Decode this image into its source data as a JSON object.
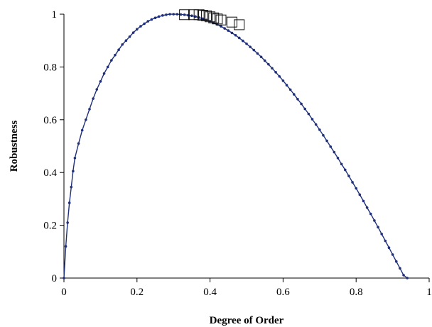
{
  "chart_data": {
    "type": "scatter",
    "title": "",
    "xlabel": "Degree of Order",
    "ylabel": "Robustness",
    "xlim": [
      0,
      1
    ],
    "ylim": [
      0,
      1
    ],
    "x_ticks": [
      "0",
      "0.2",
      "0.4",
      "0.6",
      "0.8",
      "1"
    ],
    "y_ticks": [
      "0",
      "0.2",
      "0.4",
      "0.6",
      "0.8",
      "1"
    ],
    "grid": false,
    "legend": false,
    "series_color": "#1f2f7a",
    "marker_color": "#111111",
    "series": [
      {
        "values": [
          [
            0.0,
            0.0
          ],
          [
            0.005,
            0.12
          ],
          [
            0.01,
            0.21
          ],
          [
            0.015,
            0.285
          ],
          [
            0.02,
            0.345
          ],
          [
            0.025,
            0.405
          ],
          [
            0.03,
            0.455
          ],
          [
            0.04,
            0.51
          ],
          [
            0.05,
            0.56
          ],
          [
            0.06,
            0.6
          ],
          [
            0.07,
            0.64
          ],
          [
            0.08,
            0.68
          ],
          [
            0.09,
            0.715
          ],
          [
            0.1,
            0.745
          ],
          [
            0.11,
            0.775
          ],
          [
            0.12,
            0.8
          ],
          [
            0.13,
            0.825
          ],
          [
            0.14,
            0.845
          ],
          [
            0.15,
            0.865
          ],
          [
            0.16,
            0.885
          ],
          [
            0.17,
            0.9
          ],
          [
            0.18,
            0.915
          ],
          [
            0.19,
            0.93
          ],
          [
            0.2,
            0.943
          ],
          [
            0.21,
            0.954
          ],
          [
            0.22,
            0.964
          ],
          [
            0.23,
            0.973
          ],
          [
            0.24,
            0.98
          ],
          [
            0.25,
            0.986
          ],
          [
            0.26,
            0.991
          ],
          [
            0.27,
            0.995
          ],
          [
            0.28,
            0.998
          ],
          [
            0.29,
            1.0
          ],
          [
            0.3,
            1.0
          ],
          [
            0.31,
            1.0
          ],
          [
            0.32,
            0.999
          ],
          [
            0.33,
            0.998
          ],
          [
            0.34,
            0.996
          ],
          [
            0.35,
            0.994
          ],
          [
            0.36,
            0.991
          ],
          [
            0.37,
            0.987
          ],
          [
            0.38,
            0.983
          ],
          [
            0.39,
            0.978
          ],
          [
            0.4,
            0.973
          ],
          [
            0.41,
            0.967
          ],
          [
            0.42,
            0.961
          ],
          [
            0.43,
            0.954
          ],
          [
            0.44,
            0.946
          ],
          [
            0.45,
            0.938
          ],
          [
            0.46,
            0.929
          ],
          [
            0.47,
            0.92
          ],
          [
            0.48,
            0.91
          ],
          [
            0.49,
            0.899
          ],
          [
            0.5,
            0.888
          ],
          [
            0.51,
            0.876
          ],
          [
            0.52,
            0.864
          ],
          [
            0.53,
            0.851
          ],
          [
            0.54,
            0.838
          ],
          [
            0.55,
            0.824
          ],
          [
            0.56,
            0.81
          ],
          [
            0.57,
            0.795
          ],
          [
            0.58,
            0.78
          ],
          [
            0.59,
            0.764
          ],
          [
            0.6,
            0.748
          ],
          [
            0.61,
            0.731
          ],
          [
            0.62,
            0.714
          ],
          [
            0.63,
            0.696
          ],
          [
            0.64,
            0.678
          ],
          [
            0.65,
            0.66
          ],
          [
            0.66,
            0.641
          ],
          [
            0.67,
            0.622
          ],
          [
            0.68,
            0.602
          ],
          [
            0.69,
            0.582
          ],
          [
            0.7,
            0.562
          ],
          [
            0.71,
            0.541
          ],
          [
            0.72,
            0.52
          ],
          [
            0.73,
            0.498
          ],
          [
            0.74,
            0.477
          ],
          [
            0.75,
            0.455
          ],
          [
            0.76,
            0.432
          ],
          [
            0.77,
            0.41
          ],
          [
            0.78,
            0.387
          ],
          [
            0.79,
            0.363
          ],
          [
            0.8,
            0.34
          ],
          [
            0.81,
            0.316
          ],
          [
            0.82,
            0.292
          ],
          [
            0.83,
            0.267
          ],
          [
            0.84,
            0.243
          ],
          [
            0.85,
            0.218
          ],
          [
            0.86,
            0.193
          ],
          [
            0.87,
            0.167
          ],
          [
            0.88,
            0.141
          ],
          [
            0.89,
            0.115
          ],
          [
            0.9,
            0.089
          ],
          [
            0.91,
            0.063
          ],
          [
            0.92,
            0.037
          ],
          [
            0.93,
            0.011
          ],
          [
            0.94,
            0.0
          ]
        ]
      }
    ],
    "highlighted_points": [
      [
        0.33,
        0.998
      ],
      [
        0.355,
        0.998
      ],
      [
        0.37,
        0.998
      ],
      [
        0.38,
        0.996
      ],
      [
        0.39,
        0.994
      ],
      [
        0.4,
        0.99
      ],
      [
        0.41,
        0.986
      ],
      [
        0.42,
        0.982
      ],
      [
        0.43,
        0.978
      ],
      [
        0.46,
        0.97
      ],
      [
        0.48,
        0.96
      ]
    ]
  }
}
